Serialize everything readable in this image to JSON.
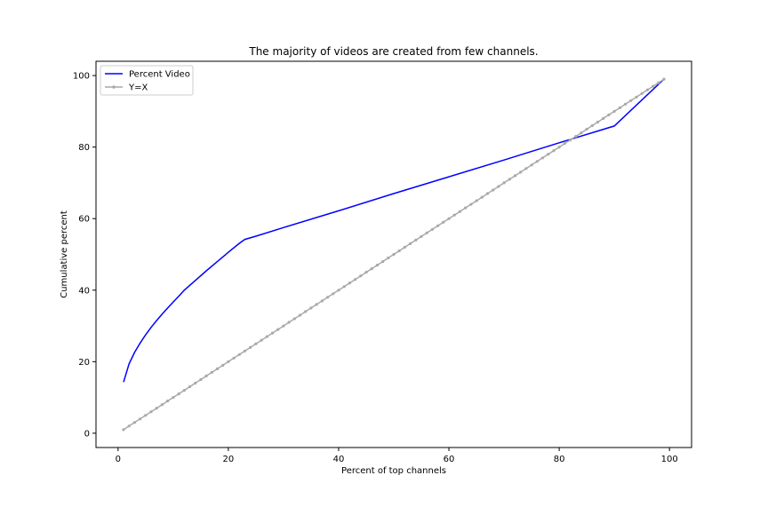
{
  "chart_data": {
    "type": "line",
    "title": "The majority of videos are created from few channels.",
    "xlabel": "Percent of top channels",
    "ylabel": "Cumulative percent",
    "xlim": [
      -4,
      104
    ],
    "ylim": [
      -4,
      104
    ],
    "xticks": [
      0,
      20,
      40,
      60,
      80,
      100
    ],
    "yticks": [
      0,
      20,
      40,
      60,
      80,
      100
    ],
    "grid": false,
    "legend_position": "upper-left",
    "series": [
      {
        "name": "Percent Video",
        "color": "#0000ff",
        "marker": "none",
        "x": [
          1,
          2,
          3,
          4,
          5,
          6,
          7,
          8,
          9,
          10,
          11,
          12,
          14,
          16,
          18,
          20,
          22,
          23,
          25,
          30,
          40,
          50,
          60,
          70,
          80,
          90,
          99
        ],
        "y": [
          14.3,
          19.4,
          22.6,
          25.2,
          27.5,
          29.6,
          31.5,
          33.3,
          35.0,
          36.7,
          38.3,
          40.0,
          42.7,
          45.4,
          48.0,
          50.6,
          53.1,
          54.2,
          55.1,
          57.5,
          62.2,
          67.0,
          71.7,
          76.4,
          81.2,
          85.9,
          99.0
        ]
      },
      {
        "name": "Y=X",
        "color": "#a9a9a9",
        "marker": "circle",
        "x_start": 1,
        "x_end": 99,
        "step": 1
      }
    ]
  }
}
